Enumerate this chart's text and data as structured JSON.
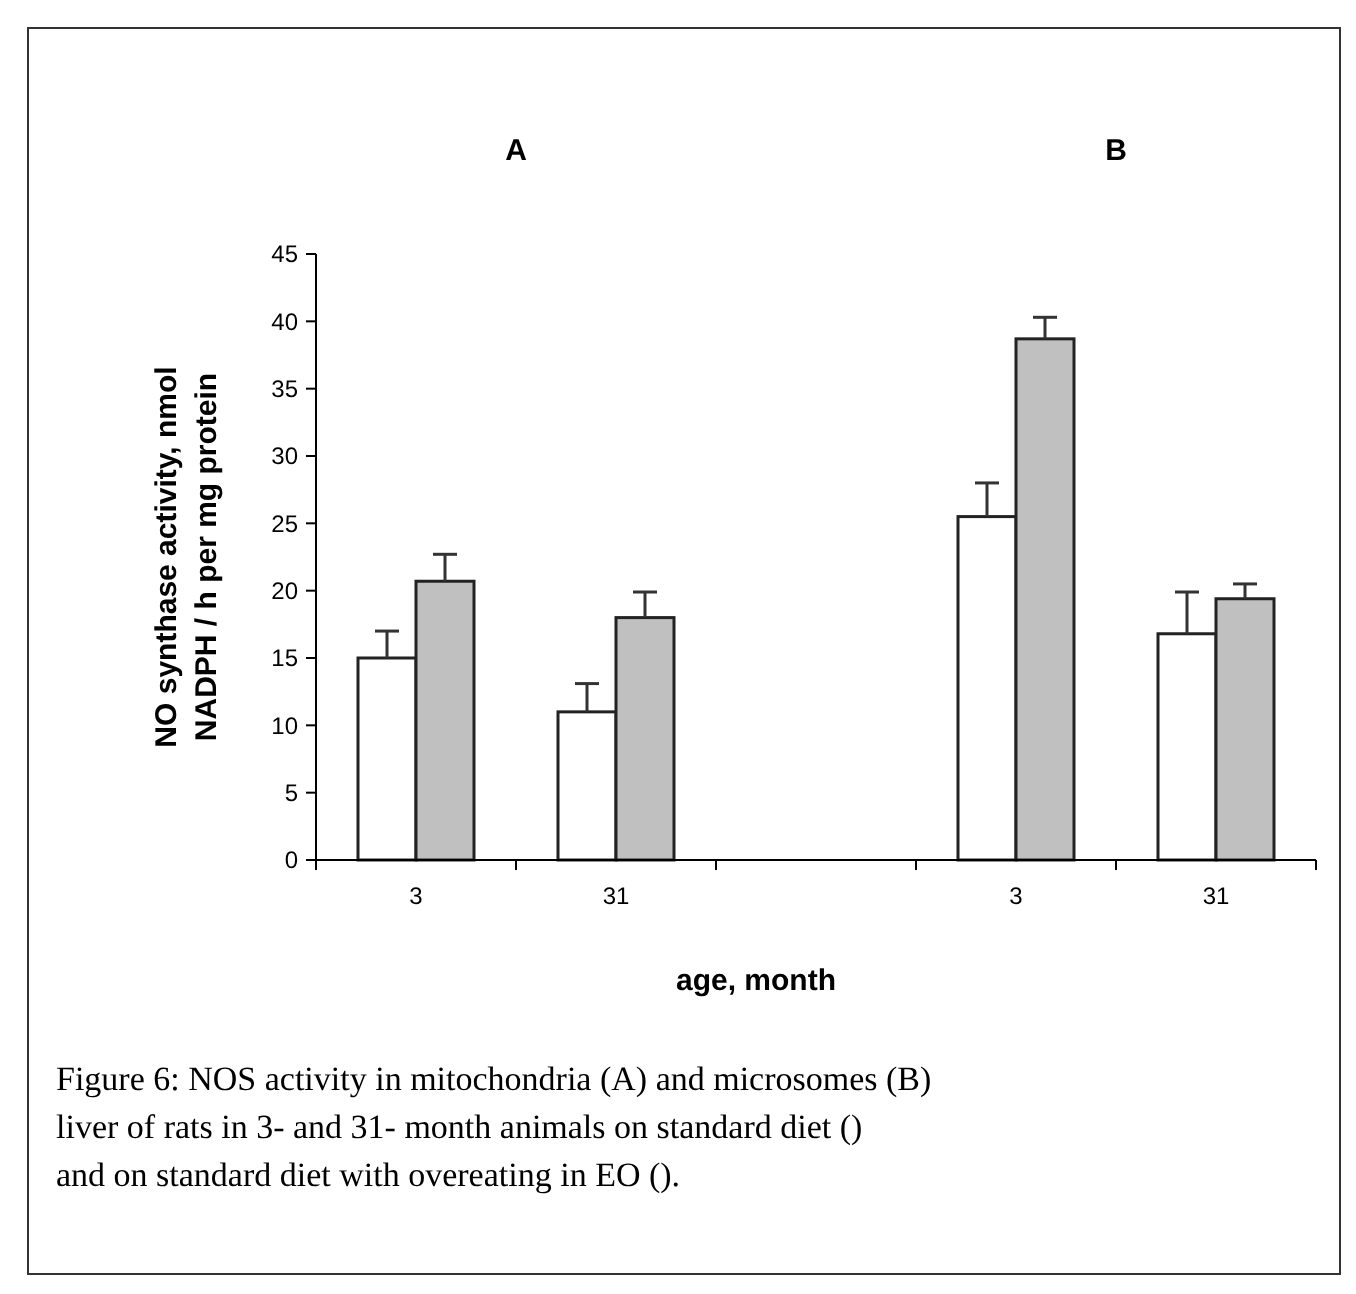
{
  "chart_data": {
    "type": "bar",
    "ylabel": "NO synthase activity, nmol\nNADPH / h per mg protein",
    "xlabel": "age, month",
    "categories": [
      "3",
      "31",
      null,
      "3",
      "31"
    ],
    "series": [
      {
        "color": "#ffffff",
        "values": [
          15,
          11,
          null,
          25.5,
          16.8
        ],
        "errors": [
          2,
          2.1,
          null,
          2.5,
          3.1
        ]
      },
      {
        "color": "#c0c0c0",
        "values": [
          20.7,
          18,
          null,
          38.7,
          19.4
        ],
        "errors": [
          2,
          1.9,
          null,
          1.6,
          1.1
        ]
      }
    ],
    "ylim": [
      0,
      45
    ],
    "yticks": [
      0,
      5,
      10,
      15,
      20,
      25,
      30,
      35,
      40,
      45
    ],
    "grid": false,
    "annotations": [
      "A",
      "B",
      "Figure 6: NOS activity in mitochondria (A) and microsomes (B) liver of rats in 3- and 31- month animals on standard diet () and on standard diet with overeating in EO ()."
    ]
  }
}
